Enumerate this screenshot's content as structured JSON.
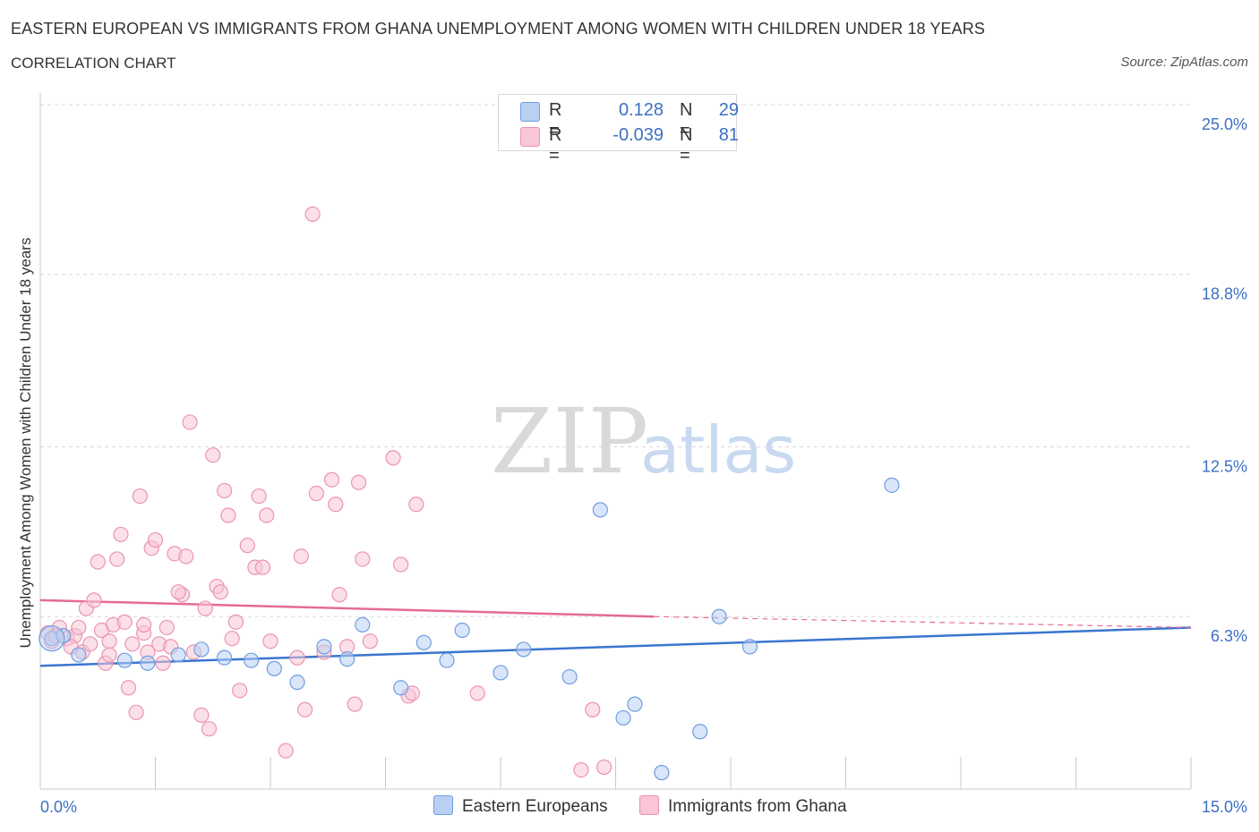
{
  "title": "EASTERN EUROPEAN VS IMMIGRANTS FROM GHANA UNEMPLOYMENT AMONG WOMEN WITH CHILDREN UNDER 18 YEARS",
  "subtitle": "CORRELATION CHART",
  "source": "Source: ZipAtlas.com",
  "watermark": {
    "zip": "ZIP",
    "atlas": "atlas"
  },
  "colors": {
    "blue": "#3a75d0",
    "blue_fill": "#b9d0f3",
    "blue_edge": "#6f9de0",
    "pink": "#e56b94",
    "pink_fill": "#f8c6d6",
    "pink_edge": "#ec93b1",
    "axis_text": "#3d6fc4",
    "grid": "#d8d8d8"
  },
  "legend": {
    "rows": [
      {
        "r_label": "R =",
        "r_value": "0.128",
        "n_label": "N =",
        "n_value": "29"
      },
      {
        "r_label": "R =",
        "r_value": "-0.039",
        "n_label": "N =",
        "n_value": "81"
      }
    ]
  },
  "chart_data": {
    "type": "scatter",
    "title": "",
    "xlabel": "",
    "ylabel": "Unemployment Among Women with Children Under 18 years",
    "xlim": [
      0,
      15
    ],
    "ylim": [
      0,
      25
    ],
    "x_tick_labels": [
      "0.0%",
      "15.0%"
    ],
    "y_tick_values": [
      6.3,
      12.5,
      18.8,
      25.0
    ],
    "y_tick_labels": [
      "6.3%",
      "12.5%",
      "18.8%",
      "25.0%"
    ],
    "grid": true,
    "legend_position": "bottom",
    "series": [
      {
        "name": "Eastern Europeans",
        "trend": {
          "x": [
            0,
            15
          ],
          "y": [
            4.5,
            5.9
          ]
        },
        "points": [
          {
            "x": 0.15,
            "y": 5.5
          },
          {
            "x": 0.5,
            "y": 4.9
          },
          {
            "x": 1.1,
            "y": 4.7
          },
          {
            "x": 1.4,
            "y": 4.6
          },
          {
            "x": 1.8,
            "y": 4.9
          },
          {
            "x": 2.1,
            "y": 5.1
          },
          {
            "x": 2.4,
            "y": 4.8
          },
          {
            "x": 2.75,
            "y": 4.7
          },
          {
            "x": 3.05,
            "y": 4.4
          },
          {
            "x": 3.35,
            "y": 3.9
          },
          {
            "x": 3.7,
            "y": 5.2
          },
          {
            "x": 4.0,
            "y": 4.75
          },
          {
            "x": 4.2,
            "y": 6.0
          },
          {
            "x": 4.7,
            "y": 3.7
          },
          {
            "x": 5.0,
            "y": 5.35
          },
          {
            "x": 5.3,
            "y": 4.7
          },
          {
            "x": 5.5,
            "y": 5.8
          },
          {
            "x": 6.0,
            "y": 4.25
          },
          {
            "x": 6.3,
            "y": 5.1
          },
          {
            "x": 6.9,
            "y": 4.1
          },
          {
            "x": 7.3,
            "y": 10.2
          },
          {
            "x": 7.6,
            "y": 2.6
          },
          {
            "x": 7.75,
            "y": 3.1
          },
          {
            "x": 8.1,
            "y": 0.6
          },
          {
            "x": 8.6,
            "y": 2.1
          },
          {
            "x": 8.85,
            "y": 6.3
          },
          {
            "x": 9.25,
            "y": 5.2
          },
          {
            "x": 11.1,
            "y": 11.1
          },
          {
            "x": 0.3,
            "y": 5.6
          }
        ]
      },
      {
        "name": "Immigrants from Ghana",
        "trend": {
          "x": [
            0,
            8.0
          ],
          "y": [
            6.9,
            6.3
          ]
        },
        "trend_dashed": {
          "x": [
            8.0,
            15
          ],
          "y": [
            6.3,
            5.9
          ]
        },
        "points": [
          {
            "x": 0.1,
            "y": 5.7
          },
          {
            "x": 0.15,
            "y": 5.4
          },
          {
            "x": 0.25,
            "y": 5.9
          },
          {
            "x": 0.35,
            "y": 5.5
          },
          {
            "x": 0.45,
            "y": 5.6
          },
          {
            "x": 0.55,
            "y": 5.0
          },
          {
            "x": 0.6,
            "y": 6.6
          },
          {
            "x": 0.65,
            "y": 5.3
          },
          {
            "x": 0.7,
            "y": 6.9
          },
          {
            "x": 0.75,
            "y": 8.3
          },
          {
            "x": 0.8,
            "y": 5.8
          },
          {
            "x": 0.85,
            "y": 4.6
          },
          {
            "x": 0.9,
            "y": 5.4
          },
          {
            "x": 0.95,
            "y": 6.0
          },
          {
            "x": 1.0,
            "y": 8.4
          },
          {
            "x": 1.05,
            "y": 9.3
          },
          {
            "x": 1.1,
            "y": 6.1
          },
          {
            "x": 1.15,
            "y": 3.7
          },
          {
            "x": 1.2,
            "y": 5.3
          },
          {
            "x": 1.25,
            "y": 2.8
          },
          {
            "x": 1.3,
            "y": 10.7
          },
          {
            "x": 1.35,
            "y": 5.7
          },
          {
            "x": 1.45,
            "y": 8.8
          },
          {
            "x": 1.5,
            "y": 9.1
          },
          {
            "x": 1.55,
            "y": 5.3
          },
          {
            "x": 1.6,
            "y": 4.6
          },
          {
            "x": 1.65,
            "y": 5.9
          },
          {
            "x": 1.75,
            "y": 8.6
          },
          {
            "x": 1.85,
            "y": 7.1
          },
          {
            "x": 1.9,
            "y": 8.5
          },
          {
            "x": 1.95,
            "y": 13.4
          },
          {
            "x": 2.1,
            "y": 2.7
          },
          {
            "x": 2.15,
            "y": 6.6
          },
          {
            "x": 2.2,
            "y": 2.2
          },
          {
            "x": 2.25,
            "y": 12.2
          },
          {
            "x": 2.3,
            "y": 7.4
          },
          {
            "x": 2.35,
            "y": 7.2
          },
          {
            "x": 2.4,
            "y": 10.9
          },
          {
            "x": 2.45,
            "y": 10.0
          },
          {
            "x": 2.5,
            "y": 5.5
          },
          {
            "x": 2.6,
            "y": 3.6
          },
          {
            "x": 2.7,
            "y": 8.9
          },
          {
            "x": 2.8,
            "y": 8.1
          },
          {
            "x": 2.85,
            "y": 10.7
          },
          {
            "x": 2.9,
            "y": 8.1
          },
          {
            "x": 2.95,
            "y": 10.0
          },
          {
            "x": 3.0,
            "y": 5.4
          },
          {
            "x": 3.2,
            "y": 1.4
          },
          {
            "x": 3.35,
            "y": 4.8
          },
          {
            "x": 3.4,
            "y": 8.5
          },
          {
            "x": 3.45,
            "y": 2.9
          },
          {
            "x": 3.55,
            "y": 21.0
          },
          {
            "x": 3.6,
            "y": 10.8
          },
          {
            "x": 3.8,
            "y": 11.3
          },
          {
            "x": 3.85,
            "y": 10.4
          },
          {
            "x": 3.9,
            "y": 7.1
          },
          {
            "x": 4.0,
            "y": 5.2
          },
          {
            "x": 4.1,
            "y": 3.1
          },
          {
            "x": 4.15,
            "y": 11.2
          },
          {
            "x": 4.2,
            "y": 8.4
          },
          {
            "x": 4.3,
            "y": 5.4
          },
          {
            "x": 4.6,
            "y": 12.1
          },
          {
            "x": 4.7,
            "y": 8.2
          },
          {
            "x": 4.8,
            "y": 3.4
          },
          {
            "x": 4.85,
            "y": 3.5
          },
          {
            "x": 4.9,
            "y": 10.4
          },
          {
            "x": 5.7,
            "y": 3.5
          },
          {
            "x": 7.05,
            "y": 0.7
          },
          {
            "x": 7.2,
            "y": 2.9
          },
          {
            "x": 7.35,
            "y": 0.8
          },
          {
            "x": 0.2,
            "y": 5.6
          },
          {
            "x": 0.4,
            "y": 5.2
          },
          {
            "x": 0.5,
            "y": 5.9
          },
          {
            "x": 1.4,
            "y": 5.0
          },
          {
            "x": 1.7,
            "y": 5.2
          },
          {
            "x": 1.8,
            "y": 7.2
          },
          {
            "x": 2.0,
            "y": 5.0
          },
          {
            "x": 0.9,
            "y": 4.9
          },
          {
            "x": 1.35,
            "y": 6.0
          },
          {
            "x": 3.7,
            "y": 5.0
          },
          {
            "x": 2.55,
            "y": 6.1
          }
        ]
      }
    ]
  }
}
